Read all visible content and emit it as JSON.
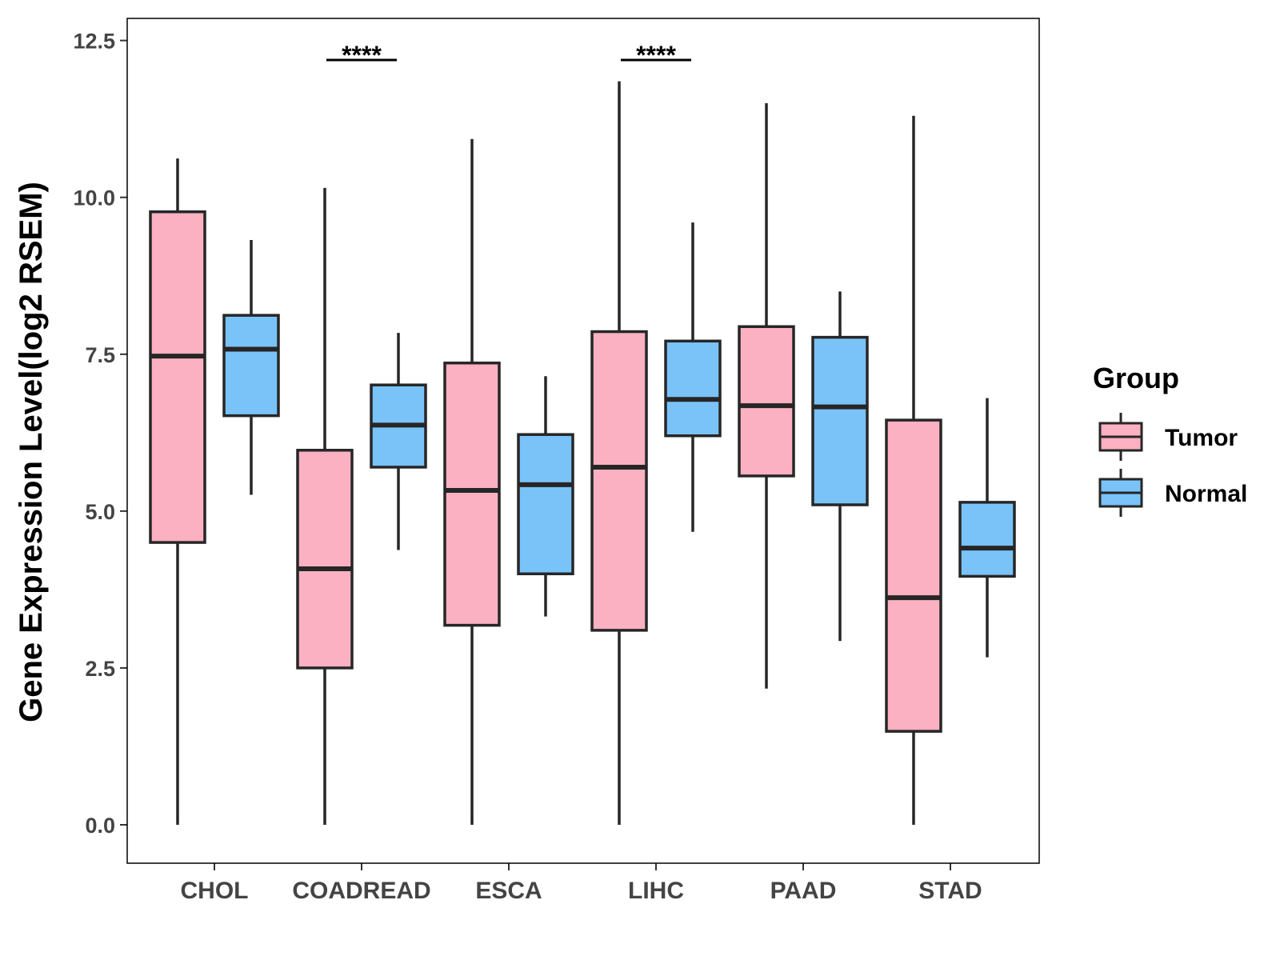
{
  "chart_data": {
    "type": "boxplot",
    "title": "",
    "xlabel": "",
    "ylabel": "Gene Expression Level(log2 RSEM)",
    "ylim": [
      -0.6,
      12.9
    ],
    "yticks": [
      0.0,
      2.5,
      5.0,
      7.5,
      10.0,
      12.5
    ],
    "ytick_labels": [
      "0.0",
      "2.5",
      "5.0",
      "7.5",
      "10.0",
      "12.5"
    ],
    "grid": false,
    "categories": [
      "CHOL",
      "COADREAD",
      "ESCA",
      "LIHC",
      "PAAD",
      "STAD"
    ],
    "legend": {
      "title": "Group",
      "position": "right"
    },
    "series": [
      {
        "name": "Tumor",
        "color": "#fbb1c2",
        "boxes": [
          {
            "min": 0.0,
            "q1": 4.5,
            "median": 7.47,
            "q3": 9.77,
            "max": 10.62
          },
          {
            "min": 0.0,
            "q1": 2.5,
            "median": 4.08,
            "q3": 5.97,
            "max": 10.15
          },
          {
            "min": 0.0,
            "q1": 3.18,
            "median": 5.33,
            "q3": 7.36,
            "max": 10.93
          },
          {
            "min": 0.0,
            "q1": 3.1,
            "median": 5.7,
            "q3": 7.86,
            "max": 11.85
          },
          {
            "min": 2.17,
            "q1": 5.56,
            "median": 6.68,
            "q3": 7.94,
            "max": 11.5
          },
          {
            "min": 0.0,
            "q1": 1.49,
            "median": 3.62,
            "q3": 6.45,
            "max": 11.3
          }
        ]
      },
      {
        "name": "Normal",
        "color": "#7ac3f9",
        "boxes": [
          {
            "min": 5.26,
            "q1": 6.52,
            "median": 7.58,
            "q3": 8.12,
            "max": 9.32
          },
          {
            "min": 4.38,
            "q1": 5.7,
            "median": 6.37,
            "q3": 7.01,
            "max": 7.84
          },
          {
            "min": 3.32,
            "q1": 4.0,
            "median": 5.42,
            "q3": 6.22,
            "max": 7.15
          },
          {
            "min": 4.67,
            "q1": 6.2,
            "median": 6.78,
            "q3": 7.71,
            "max": 9.6
          },
          {
            "min": 2.93,
            "q1": 5.1,
            "median": 6.66,
            "q3": 7.77,
            "max": 8.5
          },
          {
            "min": 2.67,
            "q1": 3.96,
            "median": 4.41,
            "q3": 5.14,
            "max": 6.8
          }
        ]
      }
    ],
    "significance": [
      {
        "category": "COADREAD",
        "label": "****"
      },
      {
        "category": "LIHC",
        "label": "****"
      }
    ]
  }
}
